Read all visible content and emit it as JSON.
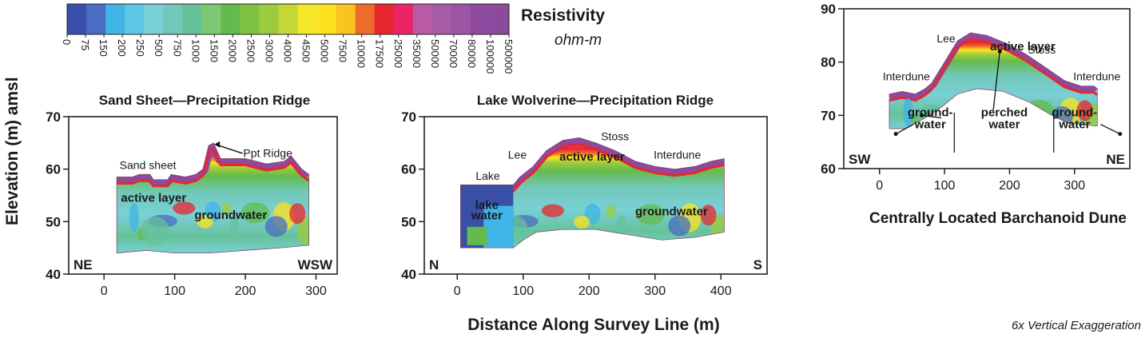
{
  "figure": {
    "ylabel": "Elevation (m) amsl",
    "xlabel": "Distance Along Survey Line (m)",
    "footnote": "6x Vertical Exaggeration"
  },
  "legend": {
    "title": "Resistivity",
    "unit": "ohm-m",
    "ticks": [
      "0",
      "75",
      "150",
      "200",
      "250",
      "500",
      "750",
      "1000",
      "1500",
      "2000",
      "2500",
      "3000",
      "4000",
      "4500",
      "5000",
      "7500",
      "10000",
      "17500",
      "25000",
      "35000",
      "50000",
      "70000",
      "80000",
      "100000",
      "500000"
    ],
    "colors": [
      "#3a4fa8",
      "#4a6cc2",
      "#3fb4e6",
      "#5fc7e6",
      "#79d0d6",
      "#72c8b8",
      "#66c29a",
      "#7cc873",
      "#63bb4d",
      "#7fc242",
      "#9ccb3c",
      "#c3d834",
      "#f3e72a",
      "#fde31e",
      "#f9c41f",
      "#ed6b2b",
      "#e8262e",
      "#ea2466",
      "#b95aa6",
      "#a75ca8",
      "#9b55a4",
      "#8d4a9e",
      "#8c4a9c"
    ]
  },
  "chart_data": [
    {
      "type": "heatmap",
      "title": "Sand Sheet—Precipitation Ridge",
      "xlabel": "",
      "ylabel": "",
      "xlim": [
        -50,
        330
      ],
      "ylim": [
        40,
        70
      ],
      "x_ticks": [
        0,
        100,
        200,
        300
      ],
      "y_ticks": [
        40,
        50,
        60,
        70
      ],
      "left_dir": "NE",
      "right_dir": "WSW",
      "surface": [
        [
          18,
          58.5
        ],
        [
          40,
          58.5
        ],
        [
          50,
          59
        ],
        [
          65,
          59
        ],
        [
          70,
          58
        ],
        [
          90,
          58
        ],
        [
          95,
          59
        ],
        [
          115,
          58.5
        ],
        [
          130,
          59
        ],
        [
          140,
          60
        ],
        [
          148,
          64.5
        ],
        [
          155,
          65
        ],
        [
          165,
          62
        ],
        [
          200,
          62
        ],
        [
          230,
          61
        ],
        [
          255,
          61.5
        ],
        [
          265,
          62.5
        ],
        [
          280,
          60
        ],
        [
          290,
          59
        ]
      ],
      "base": [
        [
          18,
          44
        ],
        [
          60,
          44.5
        ],
        [
          100,
          44
        ],
        [
          150,
          44
        ],
        [
          200,
          44.5
        ],
        [
          250,
          45
        ],
        [
          290,
          45.5
        ]
      ],
      "annotations": [
        {
          "text": "Sand sheet",
          "x": 22,
          "y": 60
        },
        {
          "text": "Ppt Ridge",
          "x": 197,
          "y": 62.3
        },
        {
          "text": "active layer",
          "x": 24,
          "y": 53.8
        },
        {
          "text": "groundwater",
          "x": 128,
          "y": 50.5
        }
      ]
    },
    {
      "type": "heatmap",
      "title": "Lake Wolverine—Precipitation Ridge",
      "xlabel": "",
      "ylabel": "",
      "xlim": [
        -50,
        470
      ],
      "ylim": [
        40,
        70
      ],
      "x_ticks": [
        0,
        100,
        200,
        300,
        400
      ],
      "y_ticks": [
        40,
        50,
        60,
        70
      ],
      "left_dir": "N",
      "right_dir": "S",
      "surface": [
        [
          5,
          57
        ],
        [
          85,
          57
        ],
        [
          95,
          58.5
        ],
        [
          115,
          60.5
        ],
        [
          135,
          63.5
        ],
        [
          160,
          65.5
        ],
        [
          185,
          66
        ],
        [
          210,
          65
        ],
        [
          240,
          63.5
        ],
        [
          270,
          61.5
        ],
        [
          300,
          60.5
        ],
        [
          330,
          60
        ],
        [
          360,
          60.5
        ],
        [
          385,
          61.5
        ],
        [
          405,
          62
        ]
      ],
      "base": [
        [
          5,
          45
        ],
        [
          85,
          45
        ],
        [
          100,
          46.5
        ],
        [
          120,
          48
        ],
        [
          160,
          48.5
        ],
        [
          210,
          48.5
        ],
        [
          260,
          47.5
        ],
        [
          310,
          46.5
        ],
        [
          360,
          47
        ],
        [
          405,
          48
        ]
      ],
      "annotations": [
        {
          "text": "Lake",
          "x": 28,
          "y": 58
        },
        {
          "text": "Lee",
          "x": 77,
          "y": 62
        },
        {
          "text": "Stoss",
          "x": 218,
          "y": 65.5
        },
        {
          "text": "Interdune",
          "x": 298,
          "y": 62
        },
        {
          "text": "active layer",
          "x": 155,
          "y": 61.6
        },
        {
          "text": "lake",
          "x": 45,
          "y": 52.4
        },
        {
          "text": "water",
          "x": 45,
          "y": 50.4
        },
        {
          "text": "groundwater",
          "x": 270,
          "y": 51.2
        }
      ]
    },
    {
      "type": "heatmap",
      "title": "Centrally Located Barchanoid Dune",
      "xlabel": "",
      "ylabel": "",
      "xlim": [
        -55,
        385
      ],
      "ylim": [
        60,
        90
      ],
      "x_ticks": [
        0,
        100,
        200,
        300
      ],
      "y_ticks": [
        60,
        70,
        80,
        90
      ],
      "left_dir": "SW",
      "right_dir": "NE",
      "surface": [
        [
          15,
          74
        ],
        [
          35,
          74.5
        ],
        [
          55,
          74
        ],
        [
          70,
          75
        ],
        [
          80,
          76
        ],
        [
          100,
          80
        ],
        [
          120,
          84
        ],
        [
          140,
          85.5
        ],
        [
          165,
          85
        ],
        [
          195,
          83.5
        ],
        [
          225,
          81.5
        ],
        [
          255,
          79
        ],
        [
          285,
          76.5
        ],
        [
          310,
          75.5
        ],
        [
          330,
          75.5
        ],
        [
          335,
          75
        ]
      ],
      "base": [
        [
          15,
          67.5
        ],
        [
          40,
          67.5
        ],
        [
          70,
          69.5
        ],
        [
          95,
          71.5
        ],
        [
          120,
          74
        ],
        [
          150,
          75
        ],
        [
          190,
          74.5
        ],
        [
          230,
          72.5
        ],
        [
          265,
          70
        ],
        [
          290,
          68.5
        ],
        [
          335,
          68
        ]
      ],
      "annotations": [
        {
          "text": "Lee",
          "x": 88,
          "y": 83.7
        },
        {
          "text": "Stoss",
          "x": 228,
          "y": 81.6
        },
        {
          "text": "Interdune",
          "x": 5,
          "y": 76.6
        },
        {
          "text": "Interdune",
          "x": 298,
          "y": 76.6
        },
        {
          "text": "active layer",
          "x": 170,
          "y": 82.2
        },
        {
          "text": "ground-",
          "x": 78,
          "y": 69.8
        },
        {
          "text": "water",
          "x": 78,
          "y": 67.6
        },
        {
          "text": "perched",
          "x": 192,
          "y": 69.8
        },
        {
          "text": "water",
          "x": 192,
          "y": 67.6
        },
        {
          "text": "ground-",
          "x": 300,
          "y": 69.8
        },
        {
          "text": "water",
          "x": 300,
          "y": 67.6
        }
      ]
    }
  ]
}
